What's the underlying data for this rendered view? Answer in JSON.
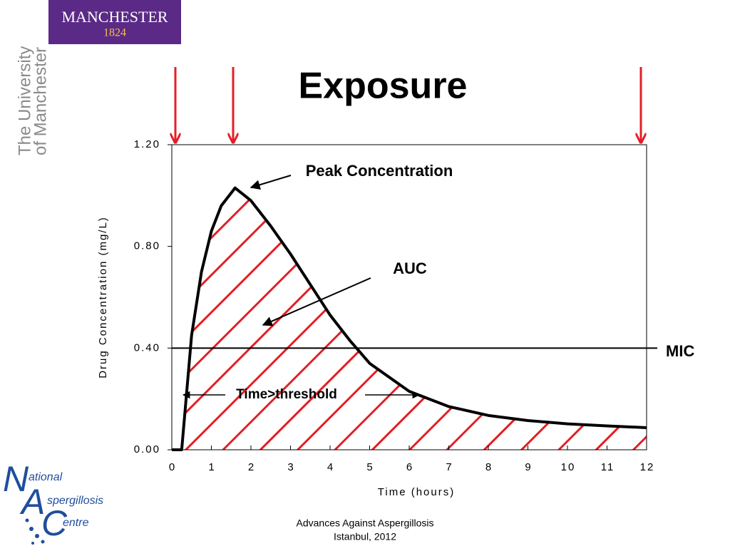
{
  "slide": {
    "logo_top": "MANCHESTER",
    "logo_year": "1824",
    "university_line1": "The University",
    "university_line2": "of Manchester",
    "logo_bottom": [
      "N",
      "ational",
      "A",
      "spergillosis",
      "C",
      "entre"
    ],
    "footer_line1": "Advances Against Aspergillosis",
    "footer_line2": "Istanbul, 2012"
  },
  "chart_data": {
    "type": "line",
    "title": "Exposure",
    "x_label": "Time (hours)",
    "y_label": "Drug Concentration (mg/L)",
    "x": [
      0,
      0.25,
      0.5,
      0.75,
      1,
      1.25,
      1.6,
      2,
      2.5,
      3,
      3.5,
      4,
      4.5,
      5,
      6,
      7,
      8,
      9,
      10,
      11,
      12
    ],
    "series": [
      {
        "name": "Drug concentration",
        "color": "#000000",
        "values": [
          0,
          0,
          0.45,
          0.7,
          0.86,
          0.96,
          1.03,
          0.98,
          0.88,
          0.77,
          0.65,
          0.53,
          0.43,
          0.34,
          0.23,
          0.17,
          0.135,
          0.115,
          0.102,
          0.094,
          0.087
        ]
      }
    ],
    "area_color": "#e41e26",
    "xlim": [
      0,
      12
    ],
    "ylim": [
      0,
      1.2
    ],
    "xticks": [
      0,
      1,
      2,
      3,
      4,
      5,
      6,
      7,
      8,
      9,
      10,
      11,
      12
    ],
    "yticks": [
      {
        "value": 0,
        "label": "0.00"
      },
      {
        "value": 0.4,
        "label": "0.40"
      },
      {
        "value": 0.8,
        "label": "0.80"
      },
      {
        "value": 1.2,
        "label": "1.20"
      }
    ],
    "reference_line": {
      "label": "MIC",
      "value": 0.4
    },
    "annotations": [
      "Peak Concentration",
      "AUC",
      "Time>threshold"
    ]
  }
}
